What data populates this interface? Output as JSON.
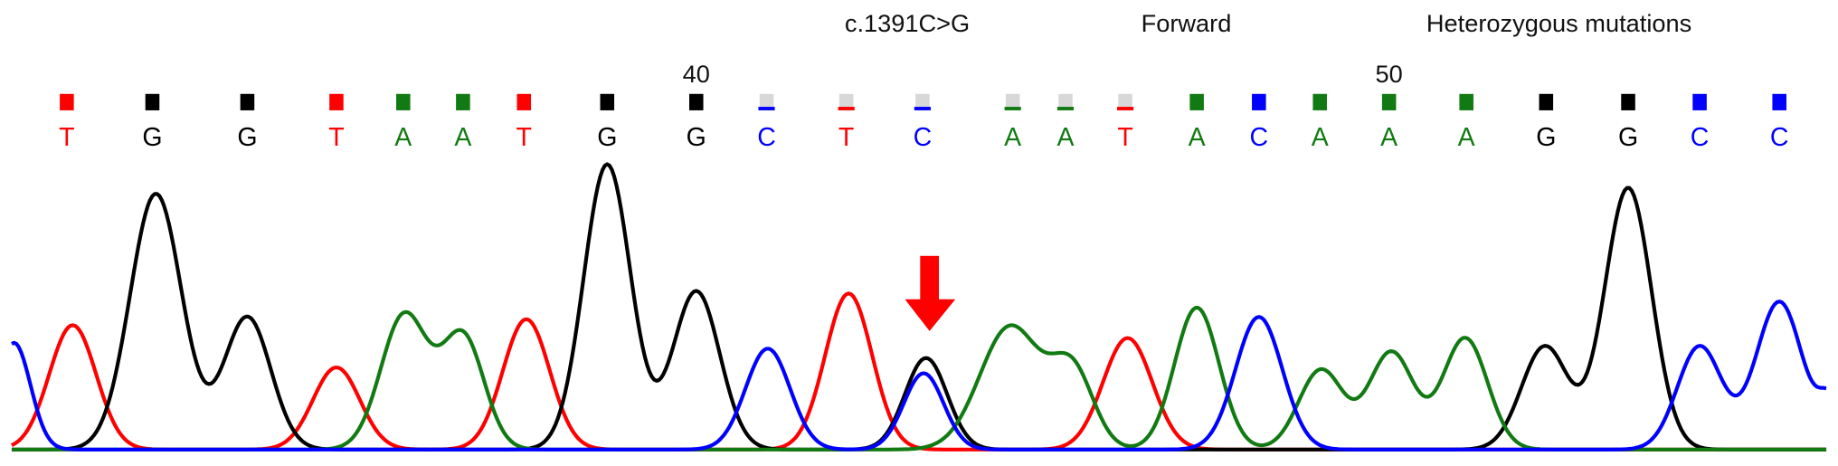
{
  "header": {
    "mutation": "c.1391C>G",
    "direction": "Forward",
    "zygosity": "Heterozygous mutations"
  },
  "positions": [
    "40",
    "50"
  ],
  "bases": [
    "T",
    "G",
    "G",
    "T",
    "A",
    "A",
    "T",
    "G",
    "G",
    "C",
    "T",
    "C",
    "A",
    "A",
    "T",
    "A",
    "C",
    "A",
    "A",
    "A",
    "G",
    "G",
    "C",
    "C"
  ]
}
